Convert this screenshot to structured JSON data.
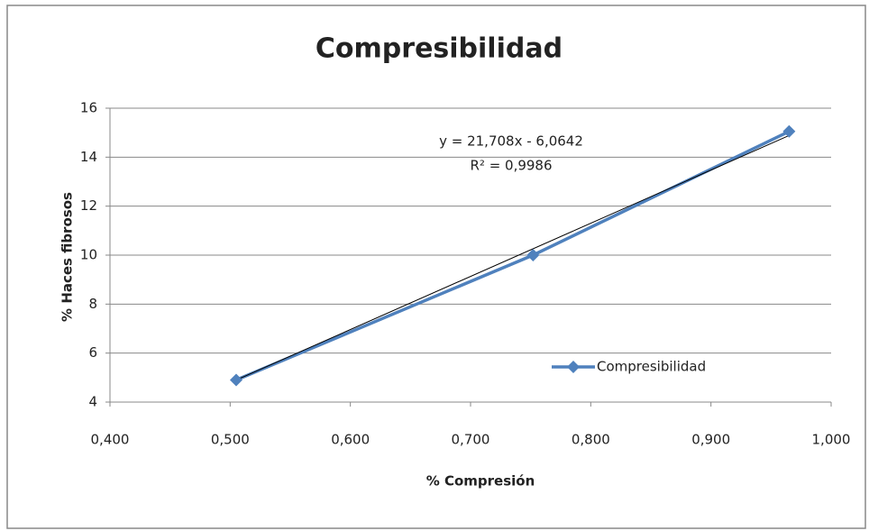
{
  "chart_data": {
    "type": "line",
    "title": "Compresibilidad",
    "x_label": "% Compresión",
    "y_label": "% Haces fibrosos",
    "x": [
      0.505,
      0.752,
      0.965
    ],
    "series": [
      {
        "name": "Compresibilidad",
        "color": "#4f81bd",
        "values": [
          4.9,
          10.0,
          15.05
        ]
      }
    ],
    "trendline": {
      "slope": 21.708,
      "intercept": -6.0642,
      "equation": "y = 21,708x - 6,0642",
      "r2": "R² = 0,9986",
      "color": "#000000"
    },
    "xlim": [
      0.4,
      1.0
    ],
    "xticks": [
      {
        "value": 0.4,
        "label": "0,400"
      },
      {
        "value": 0.5,
        "label": "0,500"
      },
      {
        "value": 0.6,
        "label": "0,600"
      },
      {
        "value": 0.7,
        "label": "0,700"
      },
      {
        "value": 0.8,
        "label": "0,800"
      },
      {
        "value": 0.9,
        "label": "0,900"
      },
      {
        "value": 1.0,
        "label": "1,000"
      }
    ],
    "ylim": [
      4,
      16
    ],
    "yticks": [
      4,
      6,
      8,
      10,
      12,
      14,
      16
    ],
    "grid": true,
    "legend": "right"
  }
}
